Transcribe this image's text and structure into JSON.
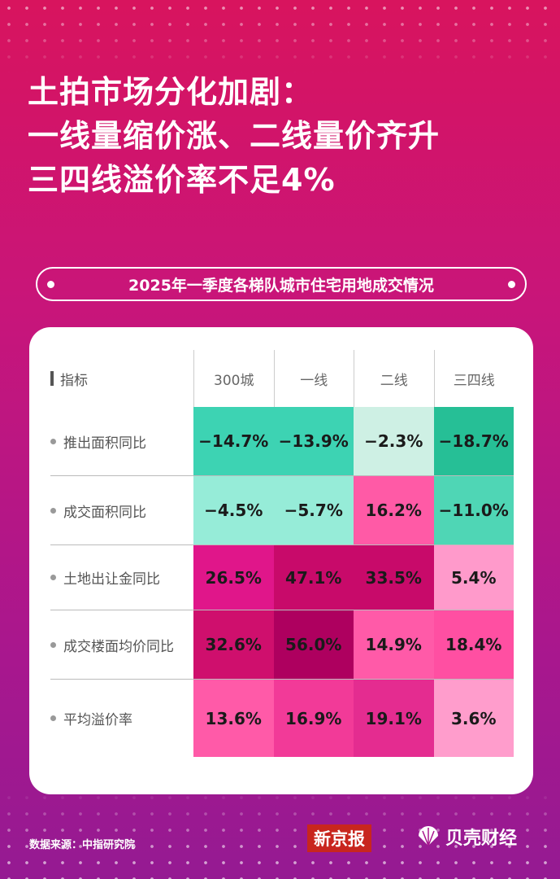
{
  "title_lines": [
    "土拍市场分化加剧：",
    "一线量缩价涨、二线量价齐升",
    "三四线溢价率不足4%"
  ],
  "subtitle": "2025年一季度各梯队城市住宅用地成交情况",
  "chart_data": {
    "type": "heatmap",
    "title": "2025年一季度各梯队城市住宅用地成交情况",
    "row_header": "指标",
    "categories": [
      "300城",
      "一线",
      "二线",
      "三四线"
    ],
    "rows": [
      "推出面积同比",
      "成交面积同比",
      "土地出让金同比",
      "成交楼面均价同比",
      "平均溢价率"
    ],
    "values": [
      [
        -14.7,
        -13.9,
        -2.3,
        -18.7
      ],
      [
        -4.5,
        -5.7,
        16.2,
        -11.0
      ],
      [
        26.5,
        47.1,
        33.5,
        5.4
      ],
      [
        32.6,
        56.0,
        14.9,
        18.4
      ],
      [
        13.6,
        16.9,
        19.1,
        3.6
      ]
    ],
    "labels": [
      [
        "−14.7%",
        "−13.9%",
        "−2.3%",
        "−18.7%"
      ],
      [
        "−4.5%",
        "−5.7%",
        "16.2%",
        "−11.0%"
      ],
      [
        "26.5%",
        "47.1%",
        "33.5%",
        "5.4%"
      ],
      [
        "32.6%",
        "56.0%",
        "14.9%",
        "18.4%"
      ],
      [
        "13.6%",
        "16.9%",
        "19.1%",
        "3.6%"
      ]
    ],
    "colors": [
      [
        "#3dd3b3",
        "#3dd3b3",
        "#cef0e4",
        "#26bf96"
      ],
      [
        "#96ecd8",
        "#96ecd8",
        "#ff5aa6",
        "#4fd6b5"
      ],
      [
        "#e0168a",
        "#c80a6a",
        "#c80a6a",
        "#ff9acb"
      ],
      [
        "#cf0f6d",
        "#ae005f",
        "#ff5aa8",
        "#ff4fa2"
      ],
      [
        "#ff5aa8",
        "#f23a98",
        "#e42c90",
        "#ff9dcc"
      ]
    ]
  },
  "footer": {
    "source": "数据来源：中指研究院",
    "logo1": "新京报",
    "logo2": "贝壳财经"
  }
}
